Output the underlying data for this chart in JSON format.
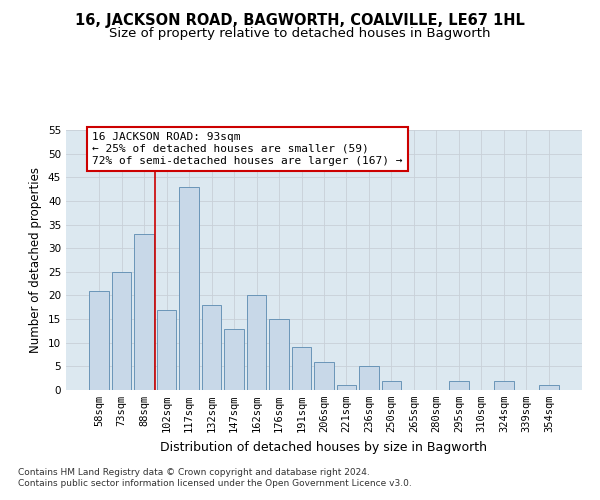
{
  "title": "16, JACKSON ROAD, BAGWORTH, COALVILLE, LE67 1HL",
  "subtitle": "Size of property relative to detached houses in Bagworth",
  "xlabel": "Distribution of detached houses by size in Bagworth",
  "ylabel": "Number of detached properties",
  "categories": [
    "58sqm",
    "73sqm",
    "88sqm",
    "102sqm",
    "117sqm",
    "132sqm",
    "147sqm",
    "162sqm",
    "176sqm",
    "191sqm",
    "206sqm",
    "221sqm",
    "236sqm",
    "250sqm",
    "265sqm",
    "280sqm",
    "295sqm",
    "310sqm",
    "324sqm",
    "339sqm",
    "354sqm"
  ],
  "values": [
    21,
    25,
    33,
    17,
    43,
    18,
    13,
    20,
    15,
    9,
    6,
    1,
    5,
    2,
    0,
    0,
    2,
    0,
    2,
    0,
    1
  ],
  "bar_color": "#c8d8e8",
  "bar_edge_color": "#5a8ab0",
  "property_line_x": 2.5,
  "annotation_text": "16 JACKSON ROAD: 93sqm\n← 25% of detached houses are smaller (59)\n72% of semi-detached houses are larger (167) →",
  "annotation_box_color": "#ffffff",
  "annotation_box_edge_color": "#cc0000",
  "vline_color": "#cc0000",
  "ylim": [
    0,
    55
  ],
  "yticks": [
    0,
    5,
    10,
    15,
    20,
    25,
    30,
    35,
    40,
    45,
    50,
    55
  ],
  "grid_color": "#c8d0d8",
  "background_color": "#dce8f0",
  "footer_text": "Contains HM Land Registry data © Crown copyright and database right 2024.\nContains public sector information licensed under the Open Government Licence v3.0.",
  "title_fontsize": 10.5,
  "subtitle_fontsize": 9.5,
  "xlabel_fontsize": 9,
  "ylabel_fontsize": 8.5,
  "tick_fontsize": 7.5,
  "annotation_fontsize": 8,
  "footer_fontsize": 6.5
}
